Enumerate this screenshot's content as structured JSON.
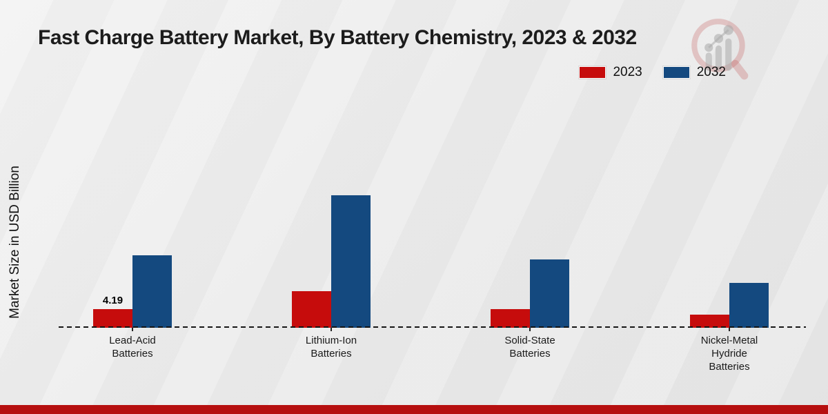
{
  "page": {
    "title": "Fast Charge Battery Market, By Battery Chemistry, 2023 & 2032",
    "ylabel": "Market Size in USD Billion"
  },
  "legend": {
    "position": "top-right",
    "items": [
      {
        "label": "2023",
        "color": "#c60c0c"
      },
      {
        "label": "2032",
        "color": "#14497f"
      }
    ]
  },
  "colors": {
    "series_2023": "#c60c0c",
    "series_2032": "#14497f",
    "background": "#ebebeb",
    "text": "#1c1c1c",
    "bottom_band": "#b60f0f",
    "baseline": "#141414"
  },
  "watermark": {
    "name": "market-research-magnifier-logo"
  },
  "chart_data": {
    "type": "bar",
    "title": "Fast Charge Battery Market, By Battery Chemistry, 2023 & 2032",
    "xlabel": "",
    "ylabel": "Market Size in USD Billion",
    "categories": [
      "Lead-Acid Batteries",
      "Lithium-Ion Batteries",
      "Solid-State Batteries",
      "Nickel-Metal Hydride Batteries"
    ],
    "categories_display": [
      [
        "Lead-Acid",
        "Batteries"
      ],
      [
        "Lithium-Ion",
        "Batteries"
      ],
      [
        "Solid-State",
        "Batteries"
      ],
      [
        "Nickel-Metal",
        "Hydride",
        "Batteries"
      ]
    ],
    "series": [
      {
        "name": "2023",
        "color": "#c60c0c",
        "values": [
          4.19,
          8.1,
          4.1,
          2.9
        ],
        "value_labels": [
          "4.19",
          "",
          "",
          ""
        ]
      },
      {
        "name": "2032",
        "color": "#14497f",
        "values": [
          16.0,
          29.3,
          15.1,
          9.9
        ],
        "value_labels": [
          "",
          "",
          "",
          ""
        ]
      }
    ],
    "annotations": [
      {
        "text": "4.19",
        "category": "Lead-Acid Batteries",
        "series": "2023"
      }
    ],
    "ylim": [
      0,
      52
    ],
    "grid": false,
    "baseline_style": "dashed",
    "legend_position": "top-right"
  }
}
